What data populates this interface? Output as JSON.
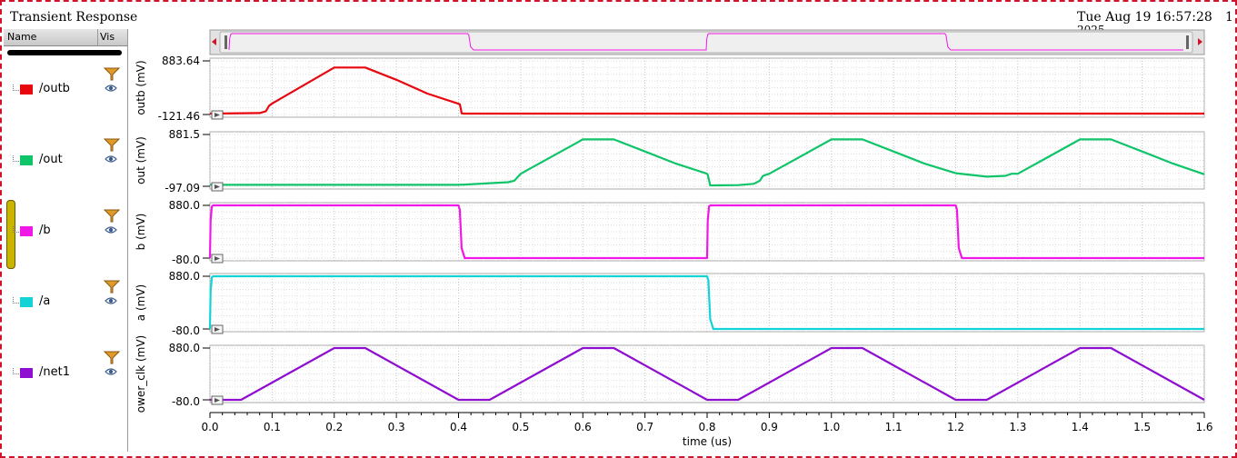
{
  "window": {
    "title": "Transient Response",
    "datestamp": "Tue Aug 19 16:57:28",
    "datestamp_line2": "2025",
    "page_number": "1"
  },
  "sidebar": {
    "header_name": "Name",
    "header_vis": "Vis",
    "signals": [
      {
        "name": "/outb",
        "color": "#e8070f"
      },
      {
        "name": "/out",
        "color": "#10c469"
      },
      {
        "name": "/b",
        "color": "#f018e6"
      },
      {
        "name": "/a",
        "color": "#14d3d6"
      },
      {
        "name": "/net1",
        "color": "#8f0fd0"
      }
    ]
  },
  "chart_data": {
    "type": "line",
    "xlabel": "time (us)",
    "xlim": [
      0,
      1.6
    ],
    "x_ticks": [
      "0.0",
      "0.1",
      "0.2",
      "0.3",
      "0.4",
      "0.5",
      "0.6",
      "0.7",
      "0.8",
      "0.9",
      "1.0",
      "1.1",
      "1.2",
      "1.3",
      "1.4",
      "1.5",
      "1.6"
    ],
    "grid": true,
    "panels": [
      {
        "ylabel": "outb (mV)",
        "ymax_label": "883.64",
        "ymin_label": "-121.46",
        "ylim": [
          -121.46,
          883.64
        ],
        "series": [
          {
            "name": "/outb",
            "color": "#e8070f",
            "x": [
              0,
              0.08,
              0.09,
              0.095,
              0.1,
              0.2,
              0.25,
              0.3,
              0.35,
              0.4,
              0.402,
              0.403,
              0.404,
              0.405,
              0.41,
              1.6
            ],
            "y": [
              -105,
              -95,
              -60,
              40,
              85,
              760,
              760,
              530,
              270,
              80,
              70,
              20,
              -30,
              -100,
              -105,
              -105
            ]
          }
        ]
      },
      {
        "ylabel": "out (mV)",
        "ymax_label": "881.5",
        "ymin_label": "-97.09",
        "ylim": [
          -97.09,
          881.5
        ],
        "series": [
          {
            "name": "/out",
            "color": "#10c469",
            "x": [
              0,
              0.4,
              0.41,
              0.48,
              0.49,
              0.5,
              0.6,
              0.65,
              0.7,
              0.75,
              0.8,
              0.801,
              0.803,
              0.805,
              0.81,
              0.85,
              0.875,
              0.885,
              0.89,
              0.9,
              1.0,
              1.05,
              1.1,
              1.15,
              1.2,
              1.25,
              1.28,
              1.29,
              1.3,
              1.4,
              1.45,
              1.5,
              1.55,
              1.6
            ],
            "y": [
              -70,
              -70,
              -65,
              -20,
              10,
              140,
              788,
              788,
              560,
              330,
              140,
              120,
              20,
              -80,
              -80,
              -75,
              -50,
              10,
              100,
              140,
              788,
              788,
              560,
              330,
              150,
              85,
              100,
              140,
              140,
              788,
              788,
              560,
              330,
              130
            ]
          }
        ]
      },
      {
        "ylabel": "b (mV)",
        "ymax_label": "880.0",
        "ymin_label": "-80.0",
        "ylim": [
          -80,
          880
        ],
        "series": [
          {
            "name": "/b",
            "color": "#f018e6",
            "x": [
              0,
              0.001,
              0.003,
              0.005,
              0.4,
              0.402,
              0.405,
              0.41,
              0.8,
              0.801,
              0.803,
              0.805,
              1.2,
              1.202,
              1.205,
              1.21,
              1.6
            ],
            "y": [
              -80,
              600,
              860,
              880,
              880,
              800,
              100,
              -80,
              -80,
              600,
              860,
              880,
              880,
              800,
              100,
              -80,
              -80
            ]
          }
        ]
      },
      {
        "ylabel": "a (mV)",
        "ymax_label": "880.0",
        "ymin_label": "-80.0",
        "ylim": [
          -80,
          880
        ],
        "series": [
          {
            "name": "/a",
            "color": "#14d3d6",
            "x": [
              0,
              0.001,
              0.003,
              0.005,
              0.8,
              0.802,
              0.805,
              0.81,
              1.6
            ],
            "y": [
              -80,
              600,
              860,
              880,
              880,
              800,
              100,
              -80,
              -80
            ]
          }
        ]
      },
      {
        "ylabel": "ower_clk (mV)",
        "ymax_label": "880.0",
        "ymin_label": "-80.0",
        "ylim": [
          -80,
          880
        ],
        "series": [
          {
            "name": "/net1",
            "color": "#8f0fd0",
            "x": [
              0,
              0.05,
              0.2,
              0.25,
              0.4,
              0.45,
              0.6,
              0.65,
              0.8,
              0.85,
              1.0,
              1.05,
              1.2,
              1.25,
              1.4,
              1.45,
              1.6
            ],
            "y": [
              -80,
              -80,
              880,
              880,
              -80,
              -80,
              880,
              880,
              -80,
              -80,
              880,
              880,
              -80,
              -80,
              880,
              880,
              -80
            ]
          }
        ]
      }
    ]
  }
}
